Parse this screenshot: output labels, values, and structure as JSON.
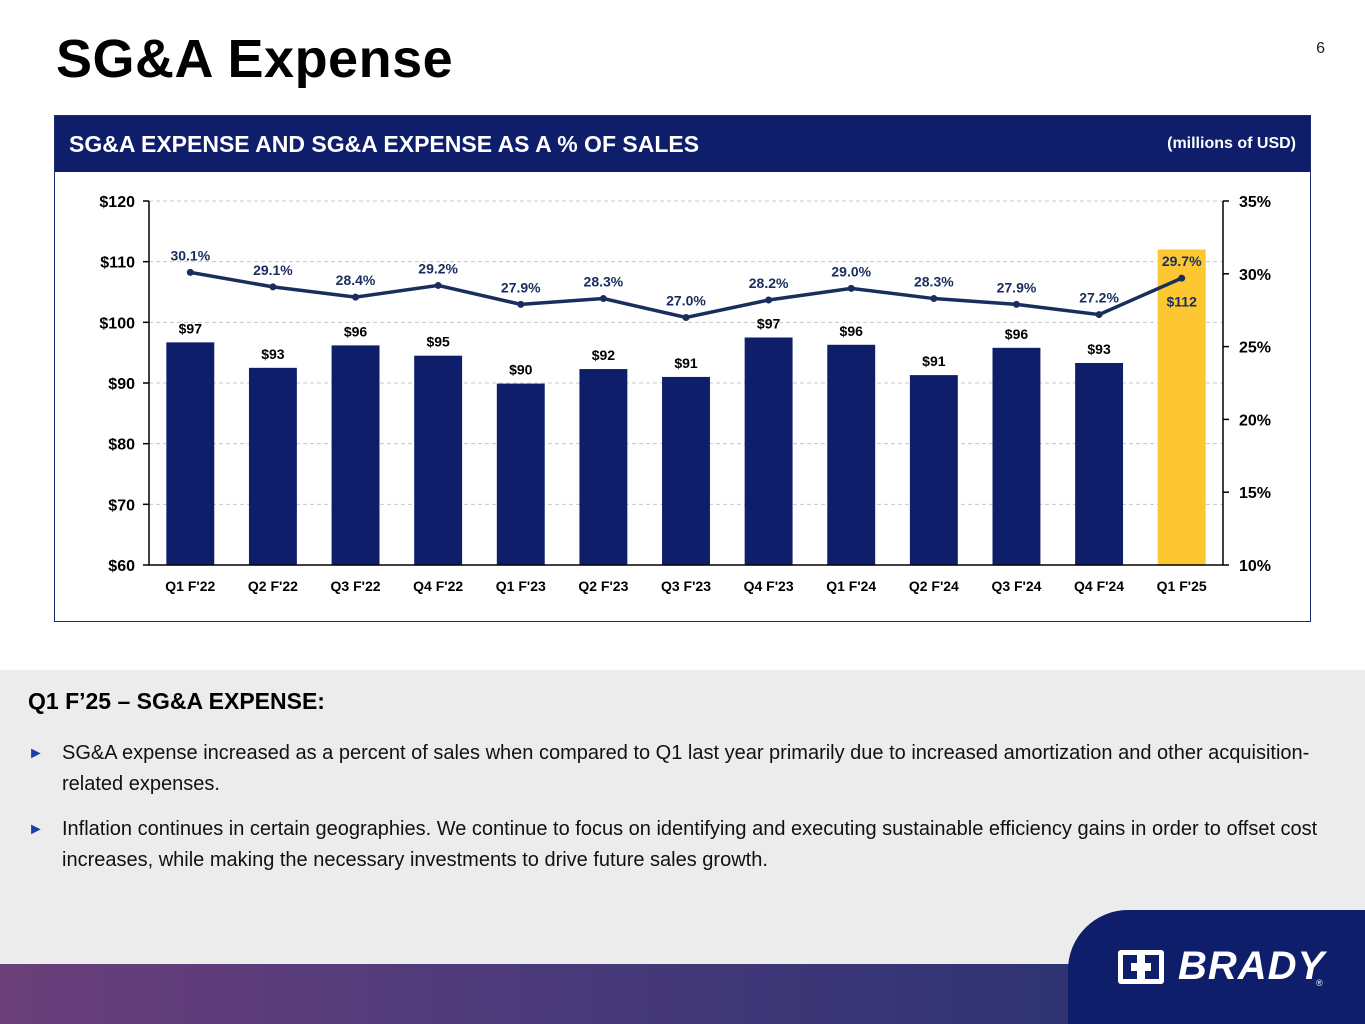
{
  "page": {
    "title": "SG&A Expense",
    "number": "6"
  },
  "panel": {
    "title": "SG&A EXPENSE AND SG&A EXPENSE AS A % OF SALES",
    "unit": "(millions of USD)"
  },
  "chart_data": {
    "type": "bar",
    "categories": [
      "Q1 F'22",
      "Q2 F'22",
      "Q3 F'22",
      "Q4 F'22",
      "Q1 F'23",
      "Q2 F'23",
      "Q3 F'23",
      "Q4 F'23",
      "Q1 F'24",
      "Q2 F'24",
      "Q3 F'24",
      "Q4 F'24",
      "Q1 F'25"
    ],
    "series": [
      {
        "type": "bar",
        "axis": "left",
        "values": [
          96.7,
          92.5,
          96.2,
          94.5,
          89.9,
          92.3,
          91.0,
          97.5,
          96.3,
          91.3,
          95.8,
          93.3,
          112.0
        ],
        "labels": [
          "$97",
          "$93",
          "$96",
          "$95",
          "$90",
          "$92",
          "$91",
          "$97",
          "$96",
          "$91",
          "$96",
          "$93",
          "$112"
        ],
        "color": "#0f1e6a",
        "highlight_color": "#fcc731",
        "highlight_index": 12
      },
      {
        "type": "line",
        "axis": "right",
        "values": [
          30.1,
          29.1,
          28.4,
          29.2,
          27.9,
          28.3,
          27.0,
          28.2,
          29.0,
          28.3,
          27.9,
          27.2,
          29.7
        ],
        "labels": [
          "30.1%",
          "29.1%",
          "28.4%",
          "29.2%",
          "27.9%",
          "28.3%",
          "27.0%",
          "28.2%",
          "29.0%",
          "28.3%",
          "27.9%",
          "27.2%",
          "29.7%"
        ],
        "color": "#1a2e5e"
      }
    ],
    "ylim_left": [
      60,
      120
    ],
    "yticks_left": [
      "$60",
      "$70",
      "$80",
      "$90",
      "$100",
      "$110",
      "$120"
    ],
    "ylim_right": [
      10,
      35
    ],
    "yticks_right": [
      "10%",
      "15%",
      "20%",
      "25%",
      "30%",
      "35%"
    ],
    "grid": true
  },
  "summary": {
    "heading": "Q1 F’25 – SG&A EXPENSE:",
    "bullets": [
      "SG&A expense increased as a percent of sales when compared to Q1 last year primarily due to increased amortization and other acquisition-related expenses.",
      "Inflation continues in certain geographies.  We continue to focus on identifying and executing sustainable efficiency gains in order to offset cost increases, while making the necessary investments to drive future sales growth."
    ]
  },
  "logo": {
    "text": "BRADY",
    "reg": "®"
  },
  "colors": {
    "navy": "#0f1e6a",
    "gold": "#fcc731",
    "line": "#1a2e5e",
    "bullet": "#1f3f9e"
  }
}
